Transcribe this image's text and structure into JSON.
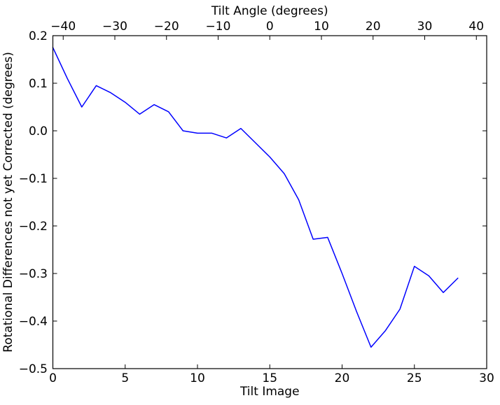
{
  "chart_data": {
    "type": "line",
    "xlabel": "Tilt Image",
    "top_xlabel": "Tilt Angle (degrees)",
    "ylabel": "Rotational Differences not yet Corrected (degrees)",
    "xlim": [
      0,
      30
    ],
    "ylim": [
      -0.5,
      0.2
    ],
    "top_xlim": [
      -42,
      42
    ],
    "xticks": [
      0,
      5,
      10,
      15,
      20,
      25,
      30
    ],
    "xtick_labels": [
      "0",
      "5",
      "10",
      "15",
      "20",
      "25",
      "30"
    ],
    "top_xticks": [
      -40,
      -30,
      -20,
      -10,
      0,
      10,
      20,
      30,
      40
    ],
    "top_xtick_labels": [
      "−40",
      "−30",
      "−20",
      "−10",
      "0",
      "10",
      "20",
      "30",
      "40"
    ],
    "yticks": [
      0.2,
      0.1,
      0.0,
      -0.1,
      -0.2,
      -0.3,
      -0.4,
      -0.5
    ],
    "ytick_labels": [
      "0.2",
      "0.1",
      "0.0",
      "−0.1",
      "−0.2",
      "−0.3",
      "−0.4",
      "−0.5"
    ],
    "grid": false,
    "legend": null,
    "frame_color": "#000000",
    "background_color": "#ffffff",
    "series": [
      {
        "name": "rotational-differences",
        "color": "#0000ff",
        "x": [
          0,
          1,
          2,
          3,
          4,
          5,
          6,
          7,
          8,
          9,
          10,
          11,
          12,
          13,
          14,
          15,
          16,
          17,
          18,
          19,
          20,
          21,
          22,
          23,
          24,
          25,
          26,
          27,
          28
        ],
        "y": [
          0.175,
          0.11,
          0.05,
          0.095,
          0.08,
          0.06,
          0.035,
          0.055,
          0.04,
          0.0,
          -0.005,
          -0.005,
          -0.015,
          0.005,
          -0.025,
          -0.055,
          -0.09,
          -0.145,
          -0.228,
          -0.224,
          -0.3,
          -0.38,
          -0.455,
          -0.42,
          -0.375,
          -0.285,
          -0.305,
          -0.34,
          -0.31
        ]
      }
    ]
  }
}
